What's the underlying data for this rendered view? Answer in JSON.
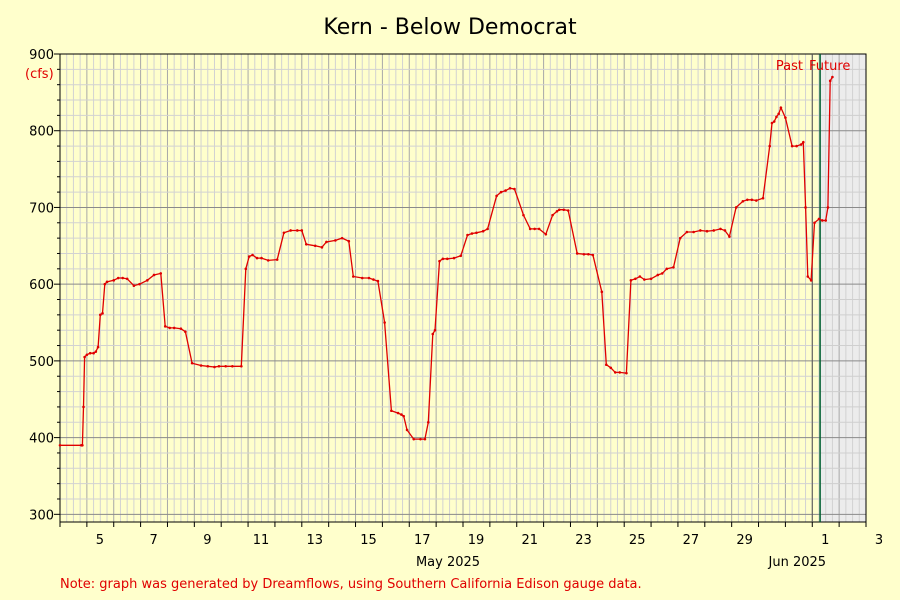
{
  "chart_data": {
    "type": "line",
    "title": "Kern - Below Democrat",
    "ylabel": "(cfs)",
    "ylim": [
      290,
      900
    ],
    "y_ticks": [
      "300",
      "400",
      "500",
      "600",
      "700",
      "800",
      "900"
    ],
    "x_axis": {
      "start": "2025-05-04",
      "end": "2025-06-03",
      "tick_labels": [
        {
          "date": "2025-05-05",
          "label": "5"
        },
        {
          "date": "2025-05-07",
          "label": "7"
        },
        {
          "date": "2025-05-09",
          "label": "9"
        },
        {
          "date": "2025-05-11",
          "label": "11"
        },
        {
          "date": "2025-05-13",
          "label": "13"
        },
        {
          "date": "2025-05-15",
          "label": "15"
        },
        {
          "date": "2025-05-17",
          "label": "17"
        },
        {
          "date": "2025-05-19",
          "label": "19"
        },
        {
          "date": "2025-05-21",
          "label": "21"
        },
        {
          "date": "2025-05-23",
          "label": "23"
        },
        {
          "date": "2025-05-25",
          "label": "25"
        },
        {
          "date": "2025-05-27",
          "label": "27"
        },
        {
          "date": "2025-05-29",
          "label": "29"
        },
        {
          "date": "2025-06-01",
          "label": "1"
        },
        {
          "date": "2025-06-03",
          "label": "3"
        }
      ],
      "month_labels": [
        {
          "date": "2025-05-19",
          "label": "May 2025"
        },
        {
          "date": "2025-06-01",
          "label": "Jun 2025"
        }
      ]
    },
    "past_label": "Past",
    "future_label": "Future",
    "now": "2025-06-01T07:00",
    "grid": true,
    "series": [
      {
        "color": "#e00000",
        "x": [
          "2025-05-04T00:00",
          "2025-05-04T19:00",
          "2025-05-04T20:00",
          "2025-05-04T21:00",
          "2025-05-04T22:00",
          "2025-05-05T00:00",
          "2025-05-05T03:00",
          "2025-05-05T06:00",
          "2025-05-05T08:00",
          "2025-05-05T10:00",
          "2025-05-05T12:00",
          "2025-05-05T14:00",
          "2025-05-05T16:00",
          "2025-05-05T18:00",
          "2025-05-06T00:00",
          "2025-05-06T04:00",
          "2025-05-06T08:00",
          "2025-05-06T12:00",
          "2025-05-06T18:00",
          "2025-05-06T23:00",
          "2025-05-07T06:00",
          "2025-05-07T12:00",
          "2025-05-07T18:00",
          "2025-05-07T22:00",
          "2025-05-08T02:00",
          "2025-05-08T06:00",
          "2025-05-08T12:00",
          "2025-05-08T16:00",
          "2025-05-08T22:00",
          "2025-05-09T06:00",
          "2025-05-09T12:00",
          "2025-05-09T18:00",
          "2025-05-09T22:00",
          "2025-05-10T04:00",
          "2025-05-10T10:00",
          "2025-05-10T18:00",
          "2025-05-10T22:00",
          "2025-05-11T01:00",
          "2025-05-11T04:00",
          "2025-05-11T08:00",
          "2025-05-11T12:00",
          "2025-05-11T18:00",
          "2025-05-12T02:00",
          "2025-05-12T08:00",
          "2025-05-12T14:00",
          "2025-05-12T20:00",
          "2025-05-13T00:00",
          "2025-05-13T04:00",
          "2025-05-13T12:00",
          "2025-05-13T18:00",
          "2025-05-13T22:00",
          "2025-05-14T06:00",
          "2025-05-14T12:00",
          "2025-05-14T18:00",
          "2025-05-14T22:00",
          "2025-05-15T06:00",
          "2025-05-15T12:00",
          "2025-05-15T16:00",
          "2025-05-15T20:00",
          "2025-05-16T02:00",
          "2025-05-16T08:00",
          "2025-05-16T14:00",
          "2025-05-16T17:00",
          "2025-05-16T19:00",
          "2025-05-16T22:00",
          "2025-05-17T04:00",
          "2025-05-17T10:00",
          "2025-05-17T14:00",
          "2025-05-17T17:00",
          "2025-05-17T21:00",
          "2025-05-17T23:00",
          "2025-05-18T03:00",
          "2025-05-18T06:00",
          "2025-05-18T10:00",
          "2025-05-18T16:00",
          "2025-05-18T22:00",
          "2025-05-19T04:00",
          "2025-05-19T08:00",
          "2025-05-19T12:00",
          "2025-05-19T18:00",
          "2025-05-19T22:00",
          "2025-05-20T06:00",
          "2025-05-20T10:00",
          "2025-05-20T14:00",
          "2025-05-20T18:00",
          "2025-05-20T22:00",
          "2025-05-21T06:00",
          "2025-05-21T12:00",
          "2025-05-21T16:00",
          "2025-05-21T20:00",
          "2025-05-22T02:00",
          "2025-05-22T08:00",
          "2025-05-22T12:00",
          "2025-05-22T14:00",
          "2025-05-22T18:00",
          "2025-05-22T22:00",
          "2025-05-23T06:00",
          "2025-05-23T12:00",
          "2025-05-23T16:00",
          "2025-05-23T20:00",
          "2025-05-24T04:00",
          "2025-05-24T08:00",
          "2025-05-24T12:00",
          "2025-05-24T16:00",
          "2025-05-24T20:00",
          "2025-05-25T02:00",
          "2025-05-25T06:00",
          "2025-05-25T10:00",
          "2025-05-25T14:00",
          "2025-05-25T18:00",
          "2025-05-26T00:00",
          "2025-05-26T06:00",
          "2025-05-26T10:00",
          "2025-05-26T14:00",
          "2025-05-26T20:00",
          "2025-05-27T02:00",
          "2025-05-27T08:00",
          "2025-05-27T14:00",
          "2025-05-27T20:00",
          "2025-05-28T02:00",
          "2025-05-28T08:00",
          "2025-05-28T14:00",
          "2025-05-28T18:00",
          "2025-05-28T22:00",
          "2025-05-29T04:00",
          "2025-05-29T10:00",
          "2025-05-29T14:00",
          "2025-05-29T18:00",
          "2025-05-29T22:00",
          "2025-05-30T04:00",
          "2025-05-30T10:00",
          "2025-05-30T12:00",
          "2025-05-30T14:00",
          "2025-05-30T16:00",
          "2025-05-30T18:00",
          "2025-05-30T20:00",
          "2025-05-31T00:00",
          "2025-05-31T06:00",
          "2025-05-31T10:00",
          "2025-05-31T14:00",
          "2025-05-31T16:00",
          "2025-05-31T18:00",
          "2025-05-31T20:00",
          "2025-05-31T23:00",
          "2025-06-01T02:00",
          "2025-06-01T06:00",
          "2025-06-01T09:00",
          "2025-06-01T12:00",
          "2025-06-01T14:00",
          "2025-06-01T16:00",
          "2025-06-01T18:00"
        ],
        "values": [
          390,
          390,
          390,
          440,
          505,
          508,
          510,
          510,
          512,
          518,
          560,
          562,
          600,
          603,
          605,
          608,
          608,
          607,
          598,
          600,
          605,
          612,
          614,
          545,
          543,
          543,
          542,
          538,
          497,
          494,
          493,
          492,
          493,
          493,
          493,
          493,
          620,
          636,
          638,
          634,
          634,
          631,
          632,
          667,
          670,
          670,
          670,
          652,
          650,
          648,
          655,
          657,
          660,
          656,
          610,
          608,
          608,
          606,
          604,
          550,
          435,
          432,
          430,
          428,
          410,
          398,
          398,
          398,
          420,
          535,
          540,
          630,
          633,
          633,
          634,
          637,
          664,
          666,
          667,
          669,
          672,
          715,
          720,
          722,
          725,
          724,
          690,
          672,
          672,
          672,
          665,
          690,
          695,
          697,
          697,
          696,
          640,
          639,
          639,
          638,
          590,
          495,
          491,
          485,
          485,
          484,
          605,
          607,
          610,
          606,
          607,
          612,
          614,
          620,
          622,
          660,
          668,
          668,
          670,
          669,
          670,
          672,
          670,
          662,
          700,
          708,
          710,
          710,
          709,
          712,
          780,
          810,
          812,
          818,
          822,
          830,
          817,
          780,
          780,
          782,
          785,
          700,
          610,
          605,
          680,
          685,
          683,
          683,
          700,
          865,
          870
        ]
      }
    ],
    "note": "Note: graph was generated by Dreamflows, using Southern California Edison gauge data."
  }
}
